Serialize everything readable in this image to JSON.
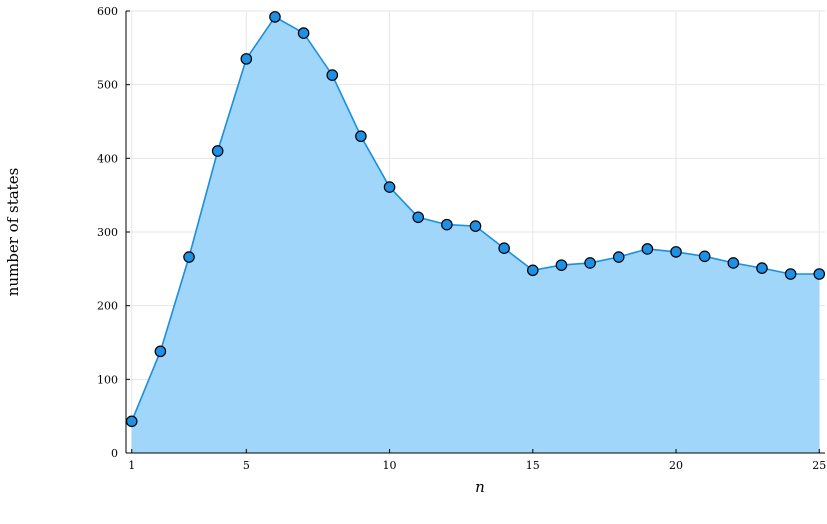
{
  "chart_data": {
    "type": "area",
    "xlabel": "n",
    "ylabel": "number of states",
    "x": [
      1,
      2,
      3,
      4,
      5,
      6,
      7,
      8,
      9,
      10,
      11,
      12,
      13,
      14,
      15,
      16,
      17,
      18,
      19,
      20,
      21,
      22,
      23,
      24,
      25
    ],
    "series": [
      {
        "values": [
          43,
          138,
          266,
          410,
          535,
          592,
          570,
          513,
          430,
          361,
          320,
          310,
          308,
          278,
          248,
          255,
          258,
          266,
          277,
          273,
          267,
          258,
          251,
          243,
          243
        ]
      }
    ],
    "xlim": [
      0.8,
      25.2
    ],
    "ylim": [
      0,
      600
    ],
    "xticks": [
      1,
      5,
      10,
      15,
      20,
      25
    ],
    "yticks": [
      0,
      100,
      200,
      300,
      400,
      500,
      600
    ],
    "grid": true,
    "legend": "none",
    "colors": {
      "fill": "#9bd4fa",
      "line": "#1a8fe0",
      "marker": "#1e90e6",
      "marker_edge": "#000000",
      "grid": "#e6e6e6",
      "axis": "#000000"
    }
  }
}
